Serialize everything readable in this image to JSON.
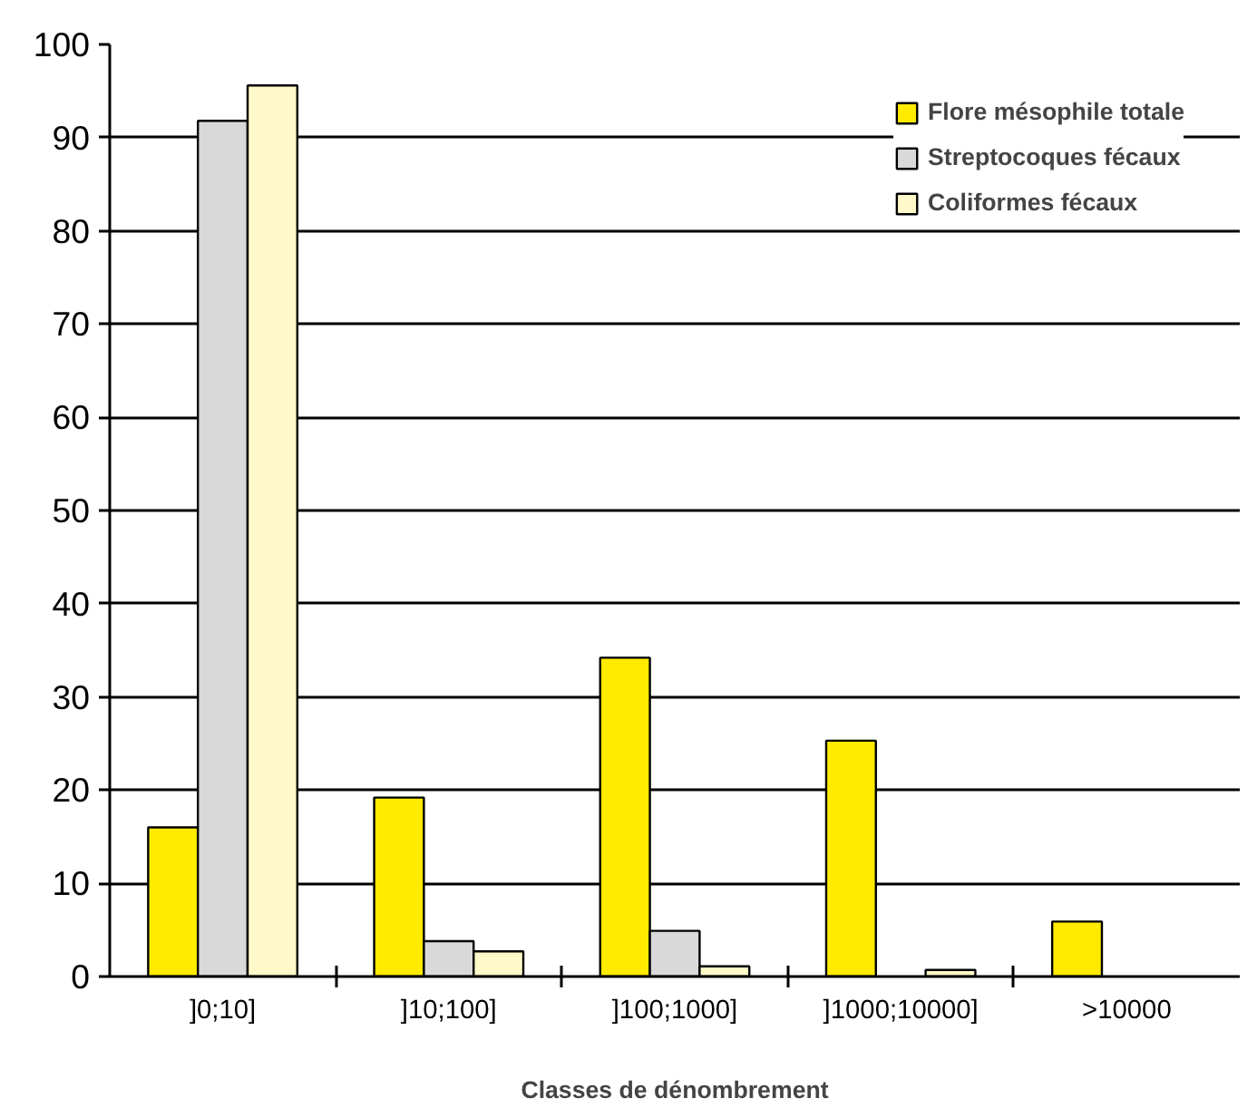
{
  "chart_data": {
    "type": "bar",
    "xlabel": "Classes de dénombrement",
    "categories": [
      "]0;10]",
      "]10;100]",
      "]100;1000]",
      "]1000;10000]",
      ">10000"
    ],
    "series": [
      {
        "name": "Flore mésophile totale",
        "color": "#ffea00",
        "values": [
          16,
          19.2,
          34.2,
          25.3,
          5.9
        ]
      },
      {
        "name": "Streptocoques fécaux",
        "color": "#d9d9d9",
        "values": [
          91.8,
          3.8,
          4.9,
          0,
          0
        ]
      },
      {
        "name": "Coliformes fécaux",
        "color": "#fff8c8",
        "values": [
          95.6,
          2.7,
          1.1,
          0.7,
          0
        ]
      }
    ],
    "ylim": [
      0,
      100
    ],
    "yticks": [
      0,
      10,
      20,
      30,
      40,
      50,
      60,
      70,
      80,
      90,
      100
    ],
    "grid": "y",
    "legend": "top right"
  }
}
